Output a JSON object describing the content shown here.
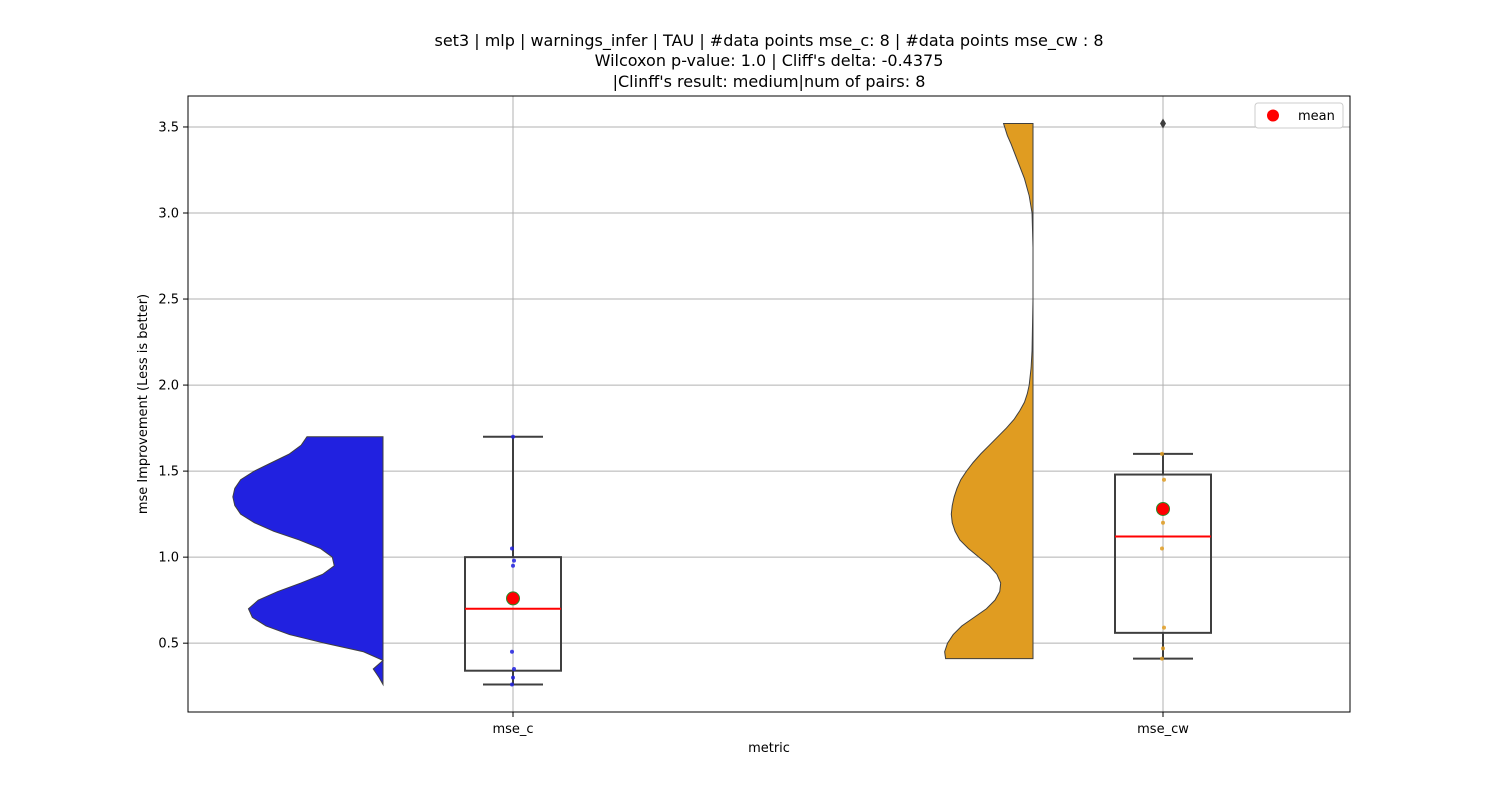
{
  "chart_data": {
    "type": "violin-box",
    "title_lines": [
      "set3 | mlp | warnings_infer | TAU | #data points mse_c: 8 | #data points mse_cw : 8",
      "Wilcoxon p-value: 1.0 | Cliff's delta: -0.4375",
      "|Clinff's result: medium|num of pairs: 8"
    ],
    "xlabel": "metric",
    "ylabel": "mse Improvement (Less is better)",
    "categories": [
      "mse_c",
      "mse_cw"
    ],
    "yticks": [
      0.5,
      1.0,
      1.5,
      2.0,
      2.5,
      3.0,
      3.5
    ],
    "ytick_labels": [
      "0.5",
      "1.0",
      "1.5",
      "2.0",
      "2.5",
      "3.0",
      "3.5"
    ],
    "ylim": [
      0.1,
      3.68
    ],
    "grid": true,
    "legend": {
      "position": "top-right",
      "entries": [
        {
          "label": "mean",
          "color": "#ff0000",
          "marker": "circle"
        }
      ]
    },
    "colors": {
      "mse_c": "#2121e0",
      "mse_cw": "#e09c21",
      "median": "#ff0000",
      "mean": "#ff0000",
      "mean_edge": "#2a8a2a",
      "box_edge": "#3f3f3f",
      "grid": "#b0b0b0"
    },
    "series": [
      {
        "name": "mse_c",
        "points": [
          0.26,
          0.3,
          0.35,
          0.45,
          0.95,
          0.98,
          1.05,
          1.7
        ],
        "box": {
          "whisker_low": 0.26,
          "q1": 0.34,
          "median": 0.7,
          "q3": 1.0,
          "whisker_high": 1.7
        },
        "mean": 0.76,
        "outliers": [],
        "violin_range": [
          0.26,
          1.7
        ],
        "violin_profile": [
          [
            0.26,
            0.0
          ],
          [
            0.3,
            0.02
          ],
          [
            0.35,
            0.05
          ],
          [
            0.4,
            0.0
          ],
          [
            0.45,
            0.1
          ],
          [
            0.5,
            0.3
          ],
          [
            0.55,
            0.48
          ],
          [
            0.6,
            0.6
          ],
          [
            0.65,
            0.67
          ],
          [
            0.7,
            0.69
          ],
          [
            0.75,
            0.64
          ],
          [
            0.8,
            0.54
          ],
          [
            0.85,
            0.42
          ],
          [
            0.9,
            0.31
          ],
          [
            0.95,
            0.25
          ],
          [
            1.0,
            0.26
          ],
          [
            1.05,
            0.32
          ],
          [
            1.1,
            0.43
          ],
          [
            1.15,
            0.56
          ],
          [
            1.2,
            0.66
          ],
          [
            1.25,
            0.73
          ],
          [
            1.3,
            0.76
          ],
          [
            1.35,
            0.77
          ],
          [
            1.4,
            0.76
          ],
          [
            1.45,
            0.73
          ],
          [
            1.5,
            0.66
          ],
          [
            1.55,
            0.57
          ],
          [
            1.6,
            0.48
          ],
          [
            1.65,
            0.42
          ],
          [
            1.7,
            0.39
          ]
        ]
      },
      {
        "name": "mse_cw",
        "points": [
          0.41,
          0.47,
          0.59,
          1.05,
          1.2,
          1.45,
          1.6,
          3.52
        ],
        "box": {
          "whisker_low": 0.41,
          "q1": 0.56,
          "median": 1.12,
          "q3": 1.48,
          "whisker_high": 1.6
        },
        "mean": 1.28,
        "outliers": [
          3.52
        ],
        "violin_range": [
          0.41,
          3.52
        ],
        "violin_profile": [
          [
            0.41,
            0.92
          ],
          [
            0.45,
            0.93
          ],
          [
            0.5,
            0.9
          ],
          [
            0.55,
            0.84
          ],
          [
            0.6,
            0.75
          ],
          [
            0.65,
            0.62
          ],
          [
            0.7,
            0.49
          ],
          [
            0.75,
            0.4
          ],
          [
            0.8,
            0.35
          ],
          [
            0.85,
            0.34
          ],
          [
            0.9,
            0.38
          ],
          [
            0.95,
            0.46
          ],
          [
            1.0,
            0.57
          ],
          [
            1.05,
            0.68
          ],
          [
            1.1,
            0.77
          ],
          [
            1.15,
            0.82
          ],
          [
            1.2,
            0.85
          ],
          [
            1.25,
            0.86
          ],
          [
            1.3,
            0.85
          ],
          [
            1.35,
            0.83
          ],
          [
            1.4,
            0.8
          ],
          [
            1.45,
            0.76
          ],
          [
            1.5,
            0.7
          ],
          [
            1.55,
            0.63
          ],
          [
            1.6,
            0.55
          ],
          [
            1.65,
            0.46
          ],
          [
            1.7,
            0.37
          ],
          [
            1.75,
            0.28
          ],
          [
            1.8,
            0.2
          ],
          [
            1.85,
            0.14
          ],
          [
            1.9,
            0.09
          ],
          [
            1.95,
            0.06
          ],
          [
            2.0,
            0.04
          ],
          [
            2.1,
            0.02
          ],
          [
            2.2,
            0.01
          ],
          [
            2.5,
            0.0
          ],
          [
            2.8,
            0.0
          ],
          [
            3.0,
            0.01
          ],
          [
            3.1,
            0.04
          ],
          [
            3.2,
            0.09
          ],
          [
            3.3,
            0.16
          ],
          [
            3.4,
            0.23
          ],
          [
            3.45,
            0.27
          ],
          [
            3.52,
            0.31
          ]
        ]
      }
    ]
  }
}
